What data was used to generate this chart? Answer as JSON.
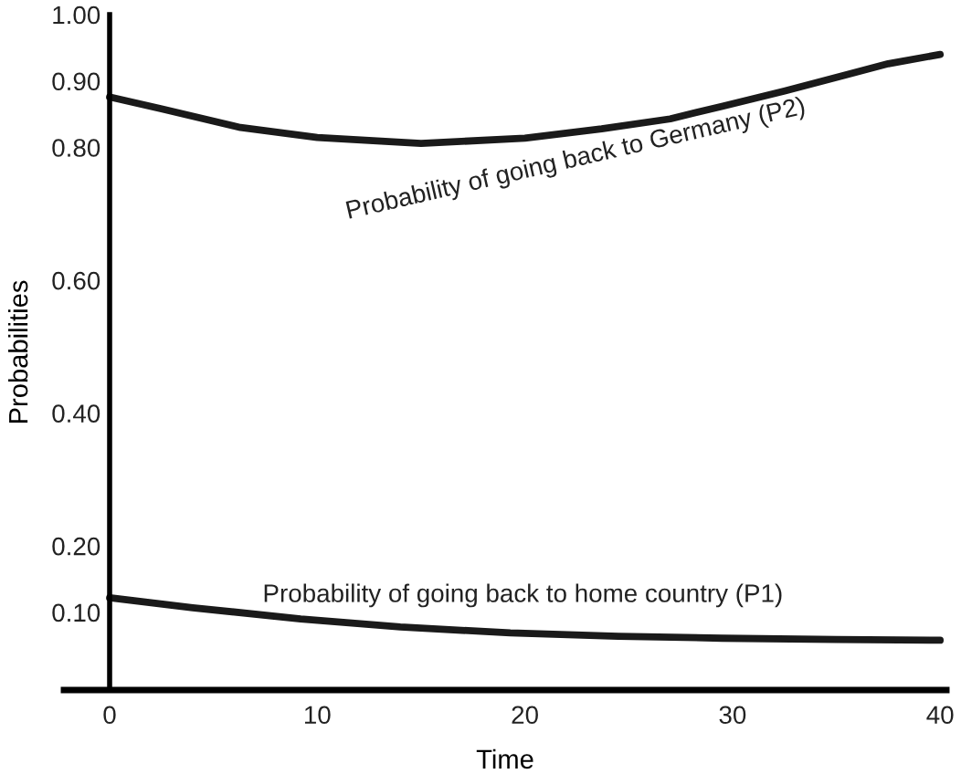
{
  "chart_data": {
    "type": "line",
    "xlabel": "Time",
    "ylabel": "Probabilities",
    "xlim": [
      -2.2,
      40.3
    ],
    "ylim": [
      -0.017,
      1.0
    ],
    "xticks": [
      0,
      10,
      20,
      30,
      40
    ],
    "yticks": [
      {
        "value": 0.1,
        "label": "0.10"
      },
      {
        "value": 0.2,
        "label": "0.20"
      },
      {
        "value": 0.4,
        "label": "0.40"
      },
      {
        "value": 0.6,
        "label": "0.60"
      },
      {
        "value": 0.8,
        "label": "0.80"
      },
      {
        "value": 0.9,
        "label": "0.90"
      },
      {
        "value": 1.0,
        "label": "1.00"
      }
    ],
    "grid": false,
    "legend": false,
    "marker": "none",
    "line_style": "solid",
    "series": [
      {
        "color": "#1a1a1a",
        "x": [
          0,
          2.5,
          6.3,
          10,
          15,
          20,
          23.7,
          27,
          29.5,
          32.5,
          35.3,
          37.5,
          40
        ],
        "values": [
          0.876,
          0.858,
          0.83,
          0.815,
          0.806,
          0.814,
          0.828,
          0.843,
          0.862,
          0.885,
          0.908,
          0.926,
          0.94
        ]
      },
      {
        "color": "#1a1a1a",
        "x": [
          0,
          4,
          9.2,
          14,
          19.3,
          24.5,
          29.5,
          35,
          40
        ],
        "values": [
          0.122,
          0.107,
          0.09,
          0.078,
          0.069,
          0.064,
          0.061,
          0.059,
          0.058
        ]
      }
    ],
    "annotations": [
      "Probability of going back to Germany (P2)",
      "Probability of going back to home country (P1)"
    ]
  }
}
